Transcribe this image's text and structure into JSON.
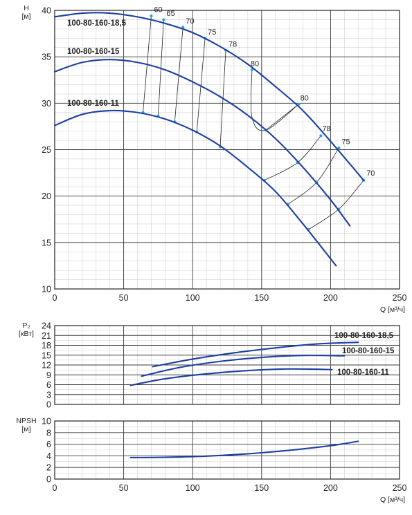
{
  "chart_data": [
    {
      "type": "line",
      "title": "",
      "xlabel": "Q [м³/ч]",
      "ylabel_line1": "H",
      "ylabel_line2": "[м]",
      "xlim": [
        0,
        250
      ],
      "ylim": [
        10,
        40
      ],
      "x_ticks": [
        0,
        50,
        100,
        150,
        200,
        250
      ],
      "y_ticks": [
        10,
        15,
        20,
        25,
        30,
        35,
        40
      ],
      "grid": true,
      "series": [
        {
          "name": "100-80-160-18,5",
          "x": [
            0,
            20,
            40,
            60,
            80,
            100,
            120,
            140,
            160,
            180,
            200,
            224
          ],
          "y": [
            39.3,
            39.7,
            39.7,
            39.3,
            38.6,
            37.6,
            36.1,
            34.2,
            31.8,
            29.2,
            25.9,
            21.7
          ]
        },
        {
          "name": "100-80-160-15",
          "x": [
            0,
            20,
            40,
            60,
            80,
            100,
            120,
            140,
            160,
            180,
            200,
            214
          ],
          "y": [
            33.4,
            34.4,
            34.7,
            34.4,
            33.6,
            32.3,
            30.7,
            28.7,
            26.2,
            23.1,
            19.6,
            16.8
          ]
        },
        {
          "name": "100-80-160-11",
          "x": [
            0,
            20,
            40,
            60,
            80,
            100,
            120,
            140,
            160,
            180,
            204
          ],
          "y": [
            27.6,
            28.8,
            29.2,
            29.0,
            28.3,
            27.1,
            25.4,
            23.1,
            20.5,
            17.0,
            12.5
          ]
        }
      ],
      "efficiency_lines": [
        {
          "label": "60",
          "points": [
            [
              70,
              39.4
            ],
            [
              64,
              29.0
            ]
          ]
        },
        {
          "label": "65",
          "points": [
            [
              79,
              39.0
            ],
            [
              75,
              28.6
            ]
          ]
        },
        {
          "label": "70",
          "points": [
            [
              93,
              38.2
            ],
            [
              87,
              28.0
            ]
          ]
        },
        {
          "label": "75",
          "points": [
            [
              109,
              37.0
            ],
            [
              103,
              26.9
            ]
          ]
        },
        {
          "label": "78",
          "points": [
            [
              124,
              35.7
            ],
            [
              120,
              25.3
            ]
          ]
        },
        {
          "label": "80",
          "points": [
            [
              143,
              33.6
            ],
            [
              143,
              28.5
            ],
            [
              153,
              27.1
            ],
            [
              177,
              29.9
            ]
          ]
        },
        {
          "label": "80",
          "points": [
            [
              153,
              27.1
            ],
            [
              177,
              29.9
            ]
          ]
        },
        {
          "label": "78",
          "points": [
            [
              152,
              21.7
            ],
            [
              176,
              23.6
            ],
            [
              193,
              26.5
            ]
          ]
        },
        {
          "label": "75",
          "points": [
            [
              169,
              19.1
            ],
            [
              190,
              21.5
            ],
            [
              206,
              25.2
            ]
          ]
        },
        {
          "label": "70",
          "points": [
            [
              184,
              16.4
            ],
            [
              206,
              18.6
            ],
            [
              224,
              21.7
            ]
          ]
        }
      ],
      "efficiency_label_positions": [
        {
          "label": "60",
          "x": 72,
          "y": 39.8
        },
        {
          "label": "65",
          "x": 81,
          "y": 39.4
        },
        {
          "label": "70",
          "x": 95,
          "y": 38.6
        },
        {
          "label": "75",
          "x": 111,
          "y": 37.4
        },
        {
          "label": "78",
          "x": 126,
          "y": 36.1
        },
        {
          "label": "80",
          "x": 142,
          "y": 34.0
        },
        {
          "label": "80",
          "x": 178,
          "y": 30.3
        },
        {
          "label": "78",
          "x": 194,
          "y": 27.0
        },
        {
          "label": "75",
          "x": 208,
          "y": 25.6
        },
        {
          "label": "70",
          "x": 226,
          "y": 22.2
        }
      ]
    },
    {
      "type": "line",
      "title": "",
      "xlabel": "",
      "ylabel_line1": "P₂",
      "ylabel_line2": "[кВт]",
      "xlim": [
        0,
        250
      ],
      "ylim": [
        0,
        24
      ],
      "x_ticks": [
        0,
        50,
        100,
        150,
        200,
        250
      ],
      "y_ticks": [
        0,
        3,
        6,
        9,
        12,
        15,
        18,
        21,
        24
      ],
      "grid": true,
      "series": [
        {
          "name": "100-80-160-18,5",
          "x": [
            71,
            100,
            130,
            160,
            190,
            220
          ],
          "y": [
            11.5,
            13.8,
            15.7,
            17.2,
            18.4,
            18.9
          ]
        },
        {
          "name": "100-80-160-15",
          "x": [
            63,
            90,
            120,
            150,
            180,
            210
          ],
          "y": [
            8.6,
            11.2,
            13.1,
            14.3,
            14.9,
            14.8
          ]
        },
        {
          "name": "100-80-160-11",
          "x": [
            55,
            80,
            110,
            140,
            170,
            201
          ],
          "y": [
            5.8,
            7.8,
            9.3,
            10.3,
            10.8,
            10.6
          ]
        }
      ]
    },
    {
      "type": "line",
      "title": "",
      "xlabel": "Q [м³/ч]",
      "ylabel_line1": "NPSH",
      "ylabel_line2": "[м]",
      "xlim": [
        0,
        250
      ],
      "ylim": [
        0,
        10
      ],
      "x_ticks": [
        0,
        50,
        100,
        150,
        200,
        250
      ],
      "y_ticks": [
        0,
        2,
        4,
        6,
        8,
        10
      ],
      "grid": true,
      "series": [
        {
          "name": "NPSH",
          "x": [
            55,
            80,
            110,
            140,
            170,
            200,
            220
          ],
          "y": [
            3.7,
            3.75,
            3.95,
            4.35,
            4.95,
            5.75,
            6.5
          ]
        }
      ]
    }
  ]
}
